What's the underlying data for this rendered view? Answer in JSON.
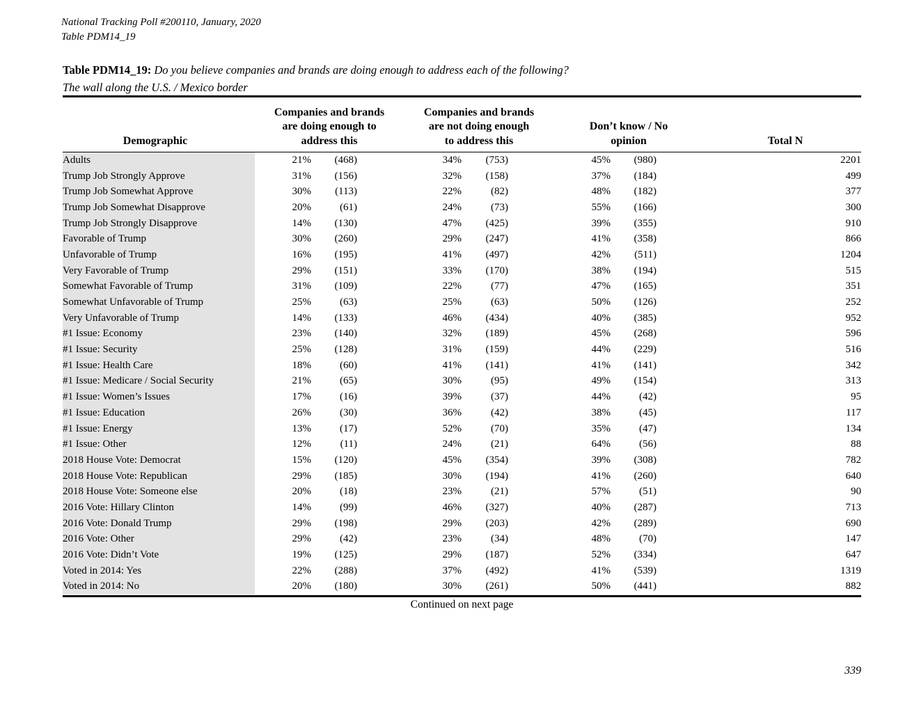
{
  "header": {
    "line1": "National Tracking Poll #200110, January, 2020",
    "line2": "Table PDM14_19"
  },
  "title": {
    "label": "Table PDM14_19:",
    "question": "Do you believe companies and brands are doing enough to address each of the following?",
    "subject": "The wall along the U.S. / Mexico border"
  },
  "table": {
    "column_headers": {
      "demographic": "Demographic",
      "group1": "Companies and brands\nare doing enough to\naddress this",
      "group2": "Companies and brands\nare not doing enough\nto address this",
      "group3": "Don’t know / No\nopinion",
      "total": "Total N"
    },
    "rows": [
      [
        "Adults",
        "21%",
        "(468)",
        "34%",
        "(753)",
        "45%",
        "(980)",
        "2201"
      ],
      [
        "Trump Job Strongly Approve",
        "31%",
        "(156)",
        "32%",
        "(158)",
        "37%",
        "(184)",
        "499"
      ],
      [
        "Trump Job Somewhat Approve",
        "30%",
        "(113)",
        "22%",
        "(82)",
        "48%",
        "(182)",
        "377"
      ],
      [
        "Trump Job Somewhat Disapprove",
        "20%",
        "(61)",
        "24%",
        "(73)",
        "55%",
        "(166)",
        "300"
      ],
      [
        "Trump Job Strongly Disapprove",
        "14%",
        "(130)",
        "47%",
        "(425)",
        "39%",
        "(355)",
        "910"
      ],
      [
        "Favorable of Trump",
        "30%",
        "(260)",
        "29%",
        "(247)",
        "41%",
        "(358)",
        "866"
      ],
      [
        "Unfavorable of Trump",
        "16%",
        "(195)",
        "41%",
        "(497)",
        "42%",
        "(511)",
        "1204"
      ],
      [
        "Very Favorable of Trump",
        "29%",
        "(151)",
        "33%",
        "(170)",
        "38%",
        "(194)",
        "515"
      ],
      [
        "Somewhat Favorable of Trump",
        "31%",
        "(109)",
        "22%",
        "(77)",
        "47%",
        "(165)",
        "351"
      ],
      [
        "Somewhat Unfavorable of Trump",
        "25%",
        "(63)",
        "25%",
        "(63)",
        "50%",
        "(126)",
        "252"
      ],
      [
        "Very Unfavorable of Trump",
        "14%",
        "(133)",
        "46%",
        "(434)",
        "40%",
        "(385)",
        "952"
      ],
      [
        "#1 Issue: Economy",
        "23%",
        "(140)",
        "32%",
        "(189)",
        "45%",
        "(268)",
        "596"
      ],
      [
        "#1 Issue: Security",
        "25%",
        "(128)",
        "31%",
        "(159)",
        "44%",
        "(229)",
        "516"
      ],
      [
        "#1 Issue: Health Care",
        "18%",
        "(60)",
        "41%",
        "(141)",
        "41%",
        "(141)",
        "342"
      ],
      [
        "#1 Issue: Medicare / Social Security",
        "21%",
        "(65)",
        "30%",
        "(95)",
        "49%",
        "(154)",
        "313"
      ],
      [
        "#1 Issue: Women’s Issues",
        "17%",
        "(16)",
        "39%",
        "(37)",
        "44%",
        "(42)",
        "95"
      ],
      [
        "#1 Issue: Education",
        "26%",
        "(30)",
        "36%",
        "(42)",
        "38%",
        "(45)",
        "117"
      ],
      [
        "#1 Issue: Energy",
        "13%",
        "(17)",
        "52%",
        "(70)",
        "35%",
        "(47)",
        "134"
      ],
      [
        "#1 Issue: Other",
        "12%",
        "(11)",
        "24%",
        "(21)",
        "64%",
        "(56)",
        "88"
      ],
      [
        "2018 House Vote: Democrat",
        "15%",
        "(120)",
        "45%",
        "(354)",
        "39%",
        "(308)",
        "782"
      ],
      [
        "2018 House Vote: Republican",
        "29%",
        "(185)",
        "30%",
        "(194)",
        "41%",
        "(260)",
        "640"
      ],
      [
        "2018 House Vote: Someone else",
        "20%",
        "(18)",
        "23%",
        "(21)",
        "57%",
        "(51)",
        "90"
      ],
      [
        "2016 Vote: Hillary Clinton",
        "14%",
        "(99)",
        "46%",
        "(327)",
        "40%",
        "(287)",
        "713"
      ],
      [
        "2016 Vote: Donald Trump",
        "29%",
        "(198)",
        "29%",
        "(203)",
        "42%",
        "(289)",
        "690"
      ],
      [
        "2016 Vote: Other",
        "29%",
        "(42)",
        "23%",
        "(34)",
        "48%",
        "(70)",
        "147"
      ],
      [
        "2016 Vote: Didn’t Vote",
        "19%",
        "(125)",
        "29%",
        "(187)",
        "52%",
        "(334)",
        "647"
      ],
      [
        "Voted in 2014: Yes",
        "22%",
        "(288)",
        "37%",
        "(492)",
        "41%",
        "(539)",
        "1319"
      ],
      [
        "Voted in 2014: No",
        "20%",
        "(180)",
        "30%",
        "(261)",
        "50%",
        "(441)",
        "882"
      ]
    ]
  },
  "footer": {
    "continued": "Continued on next page",
    "page_number": "339"
  },
  "colors": {
    "row_shade": "#e3e3e3",
    "text": "#000000",
    "background": "#ffffff"
  }
}
